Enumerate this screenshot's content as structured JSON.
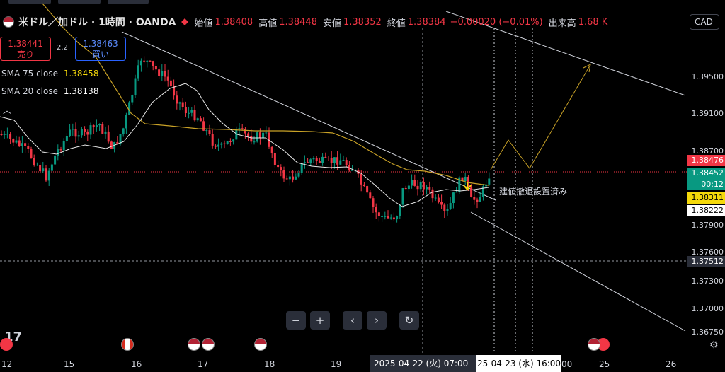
{
  "window": {
    "symbol": "米ドル／加ドル · 1時間 · OANDA",
    "ohlc": [
      {
        "label": "始値",
        "value": "1.38408"
      },
      {
        "label": "高値",
        "value": "1.38448"
      },
      {
        "label": "安値",
        "value": "1.38352"
      },
      {
        "label": "終値",
        "value": "1.38384"
      }
    ],
    "change": "−0.00020 (−0.01%)",
    "volume_label": "出来高",
    "volume_value": "1.68 K",
    "currency_button": "CAD"
  },
  "trade": {
    "sell_price": "1.38441",
    "sell_label": "売り",
    "spread": "2.2",
    "buy_price": "1.38463",
    "buy_label": "買い"
  },
  "indicators": [
    {
      "label": "SMA 75 close",
      "value": "1.38458",
      "color": "#f5d90a"
    },
    {
      "label": "SMA 20 close",
      "value": "1.38138",
      "color": "#ffffff"
    }
  ],
  "price_axis": {
    "ticks": [
      "1.39500",
      "1.39100",
      "1.38700",
      "1.37900",
      "1.37600",
      "1.37300",
      "1.37000",
      "1.36750"
    ],
    "labels": [
      {
        "value": "1.38476",
        "bg": "#f23645",
        "fg": "#ffffff"
      },
      {
        "value": "1.38452",
        "bg": "#089981",
        "fg": "#ffffff"
      },
      {
        "value": "00:12",
        "bg": "#089981",
        "fg": "#ffffff"
      },
      {
        "value": "1.38311",
        "bg": "#f5d90a",
        "fg": "#000000"
      },
      {
        "value": "1.38222",
        "bg": "#ffffff",
        "fg": "#000000"
      },
      {
        "value": "1.37512",
        "bg": "#2a2e39",
        "fg": "#ffffff"
      }
    ]
  },
  "time_axis": {
    "ticks": [
      "12",
      "15",
      "16",
      "17",
      "18",
      "19",
      "25",
      "26"
    ],
    "cursor_label": "2025-04-22 (火)   07:00",
    "cursor_label2": "25-04-23 (水)   16:00",
    "partial": "00"
  },
  "toolbar": {
    "zoom_out": "−",
    "zoom_in": "+",
    "scroll_left": "‹",
    "scroll_right": "›",
    "reset": "↻"
  },
  "annotation": "建値撤退設置済み",
  "logo_text": "17",
  "colors": {
    "up": "#089981",
    "down": "#f23645",
    "sma75": "#c9a227",
    "sma20": "#e8e8e8",
    "bg": "#000000"
  }
}
